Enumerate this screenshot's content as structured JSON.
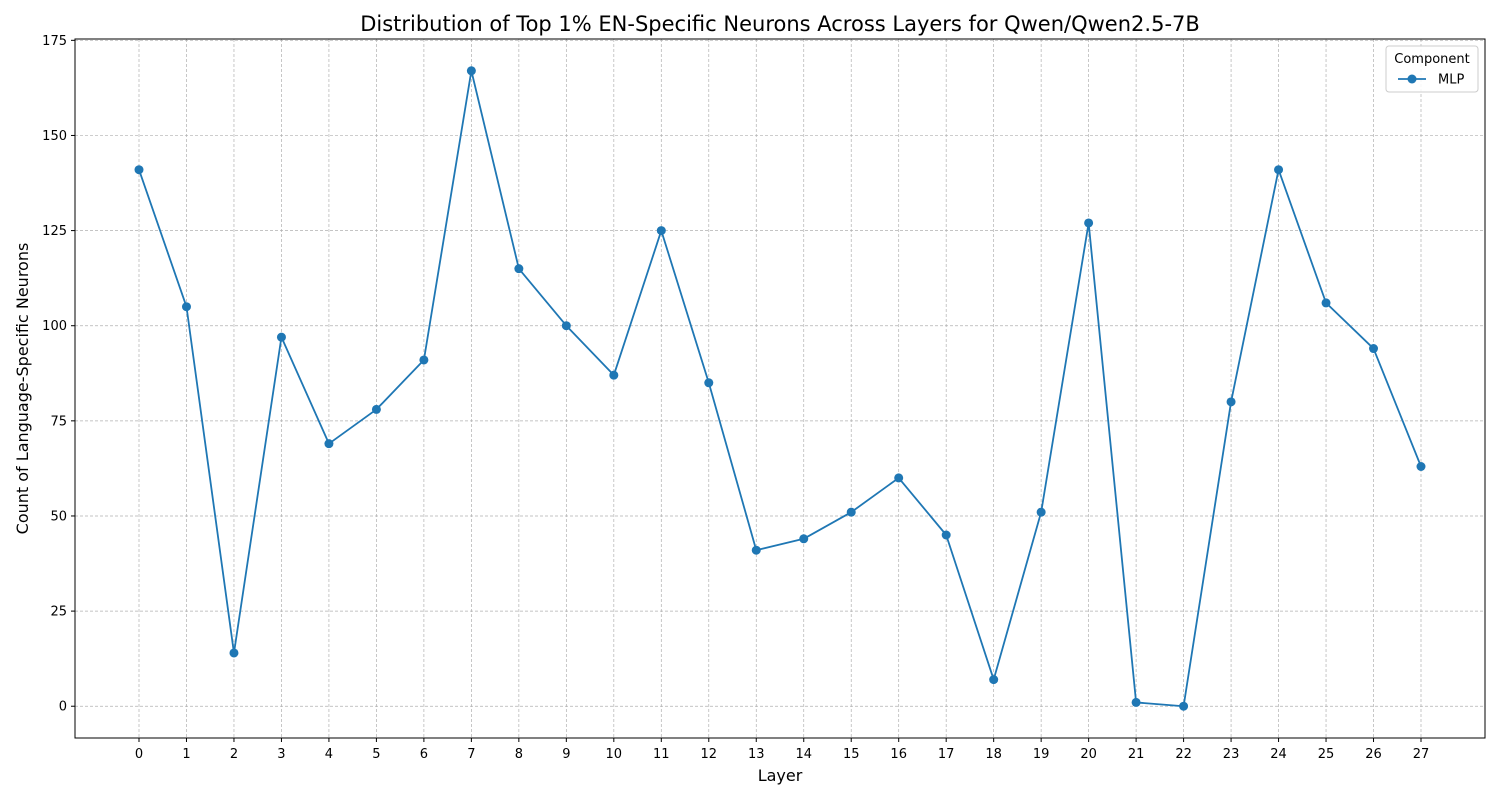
{
  "chart_data": {
    "type": "line",
    "title": "Distribution of Top 1% EN-Specific Neurons Across Layers for Qwen/Qwen2.5-7B",
    "xlabel": "Layer",
    "ylabel": "Count of Language-Specific Neurons",
    "categories": [
      "0",
      "1",
      "2",
      "3",
      "4",
      "5",
      "6",
      "7",
      "8",
      "9",
      "10",
      "11",
      "12",
      "13",
      "14",
      "15",
      "16",
      "17",
      "18",
      "19",
      "20",
      "21",
      "22",
      "23",
      "24",
      "25",
      "26",
      "27"
    ],
    "series": [
      {
        "name": "MLP",
        "color": "#1f77b4",
        "marker": "circle",
        "values": [
          141,
          105,
          14,
          97,
          69,
          78,
          91,
          167,
          115,
          100,
          87,
          125,
          85,
          41,
          44,
          51,
          60,
          45,
          7,
          51,
          127,
          1,
          0,
          80,
          141,
          106,
          94,
          63
        ]
      }
    ],
    "ylim": [
      -8.35,
      175.35
    ],
    "yticks": [
      0,
      25,
      50,
      75,
      100,
      125,
      150,
      175
    ],
    "grid": true,
    "legend": {
      "title": "Component",
      "position": "top-right"
    }
  }
}
